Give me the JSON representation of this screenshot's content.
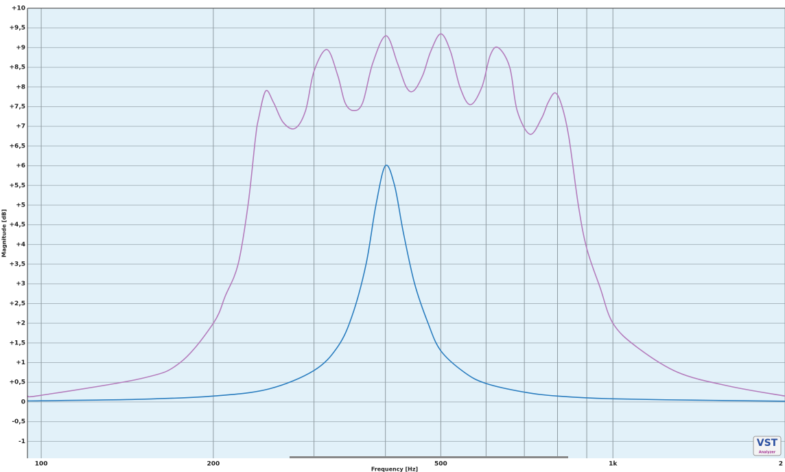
{
  "chart_data": {
    "type": "line",
    "x_label": "Frequency [Hz]",
    "y_label": "Magnitude [dB]",
    "log_x": true,
    "grid": true,
    "xlim": [
      94.6,
      2000
    ],
    "ylim": [
      -1.43,
      10
    ],
    "xticks": [
      100,
      200,
      500,
      {
        "value": 1000,
        "label": "1k"
      },
      {
        "value": 2000,
        "label": "2"
      }
    ],
    "x_minor_ticks": [
      300,
      400,
      600,
      700,
      800,
      900
    ],
    "yticks": [
      {
        "value": 10,
        "label": "+10"
      },
      {
        "value": 9.5,
        "label": "+9,5"
      },
      {
        "value": 9,
        "label": "+9"
      },
      {
        "value": 8.5,
        "label": "+8,5"
      },
      {
        "value": 8,
        "label": "+8"
      },
      {
        "value": 7.5,
        "label": "+7,5"
      },
      {
        "value": 7,
        "label": "+7"
      },
      {
        "value": 6.5,
        "label": "+6,5"
      },
      {
        "value": 6,
        "label": "+6"
      },
      {
        "value": 5.5,
        "label": "+5,5"
      },
      {
        "value": 5,
        "label": "+5"
      },
      {
        "value": 4.5,
        "label": "+4,5"
      },
      {
        "value": 4,
        "label": "+4"
      },
      {
        "value": 3.5,
        "label": "+3,5"
      },
      {
        "value": 3,
        "label": "+3"
      },
      {
        "value": 2.5,
        "label": "+2,5"
      },
      {
        "value": 2,
        "label": "+2"
      },
      {
        "value": 1.5,
        "label": "+1,5"
      },
      {
        "value": 1,
        "label": "+1"
      },
      {
        "value": 0.5,
        "label": "+0,5"
      },
      0,
      {
        "value": -0.5,
        "label": "-0,5"
      },
      -1
    ],
    "series": [
      {
        "color": "#b47cbc",
        "x": [
          94.6,
          100,
          150,
          175,
          200,
          210,
          221,
          230,
          237,
          240,
          247,
          255,
          265,
          278,
          290,
          300,
          316,
          330,
          340,
          352,
          365,
          380,
          401,
          420,
          435,
          448,
          465,
          480,
          500,
          520,
          540,
          563,
          590,
          610,
          630,
          660,
          680,
          716,
          750,
          770,
          793,
          815,
          838,
          870,
          900,
          950,
          1000,
          1100,
          1300,
          1600,
          2000
        ],
        "values": [
          0.15,
          0.17,
          0.6,
          1.0,
          2.0,
          2.7,
          3.5,
          5.0,
          6.7,
          7.2,
          7.9,
          7.6,
          7.1,
          6.95,
          7.4,
          8.4,
          8.95,
          8.3,
          7.6,
          7.4,
          7.6,
          8.6,
          9.3,
          8.6,
          8.0,
          7.9,
          8.3,
          8.9,
          9.35,
          8.9,
          8.0,
          7.55,
          8.0,
          8.8,
          9.0,
          8.5,
          7.4,
          6.8,
          7.2,
          7.6,
          7.85,
          7.5,
          6.7,
          5.0,
          3.9,
          2.9,
          2.0,
          1.4,
          0.75,
          0.4,
          0.15
        ]
      },
      {
        "color": "#2a7dbf",
        "x": [
          94.6,
          100,
          150,
          200,
          250,
          300,
          330,
          350,
          370,
          385,
          400,
          415,
          430,
          450,
          475,
          500,
          550,
          600,
          700,
          800,
          1000,
          1500,
          2000
        ],
        "values": [
          0.03,
          0.03,
          0.07,
          0.15,
          0.33,
          0.8,
          1.4,
          2.2,
          3.5,
          5.0,
          6.0,
          5.5,
          4.3,
          3.0,
          2.0,
          1.3,
          0.75,
          0.47,
          0.25,
          0.15,
          0.08,
          0.04,
          0.02
        ]
      }
    ]
  },
  "logo": {
    "text": "VST",
    "subtitle": "Analyzer"
  }
}
